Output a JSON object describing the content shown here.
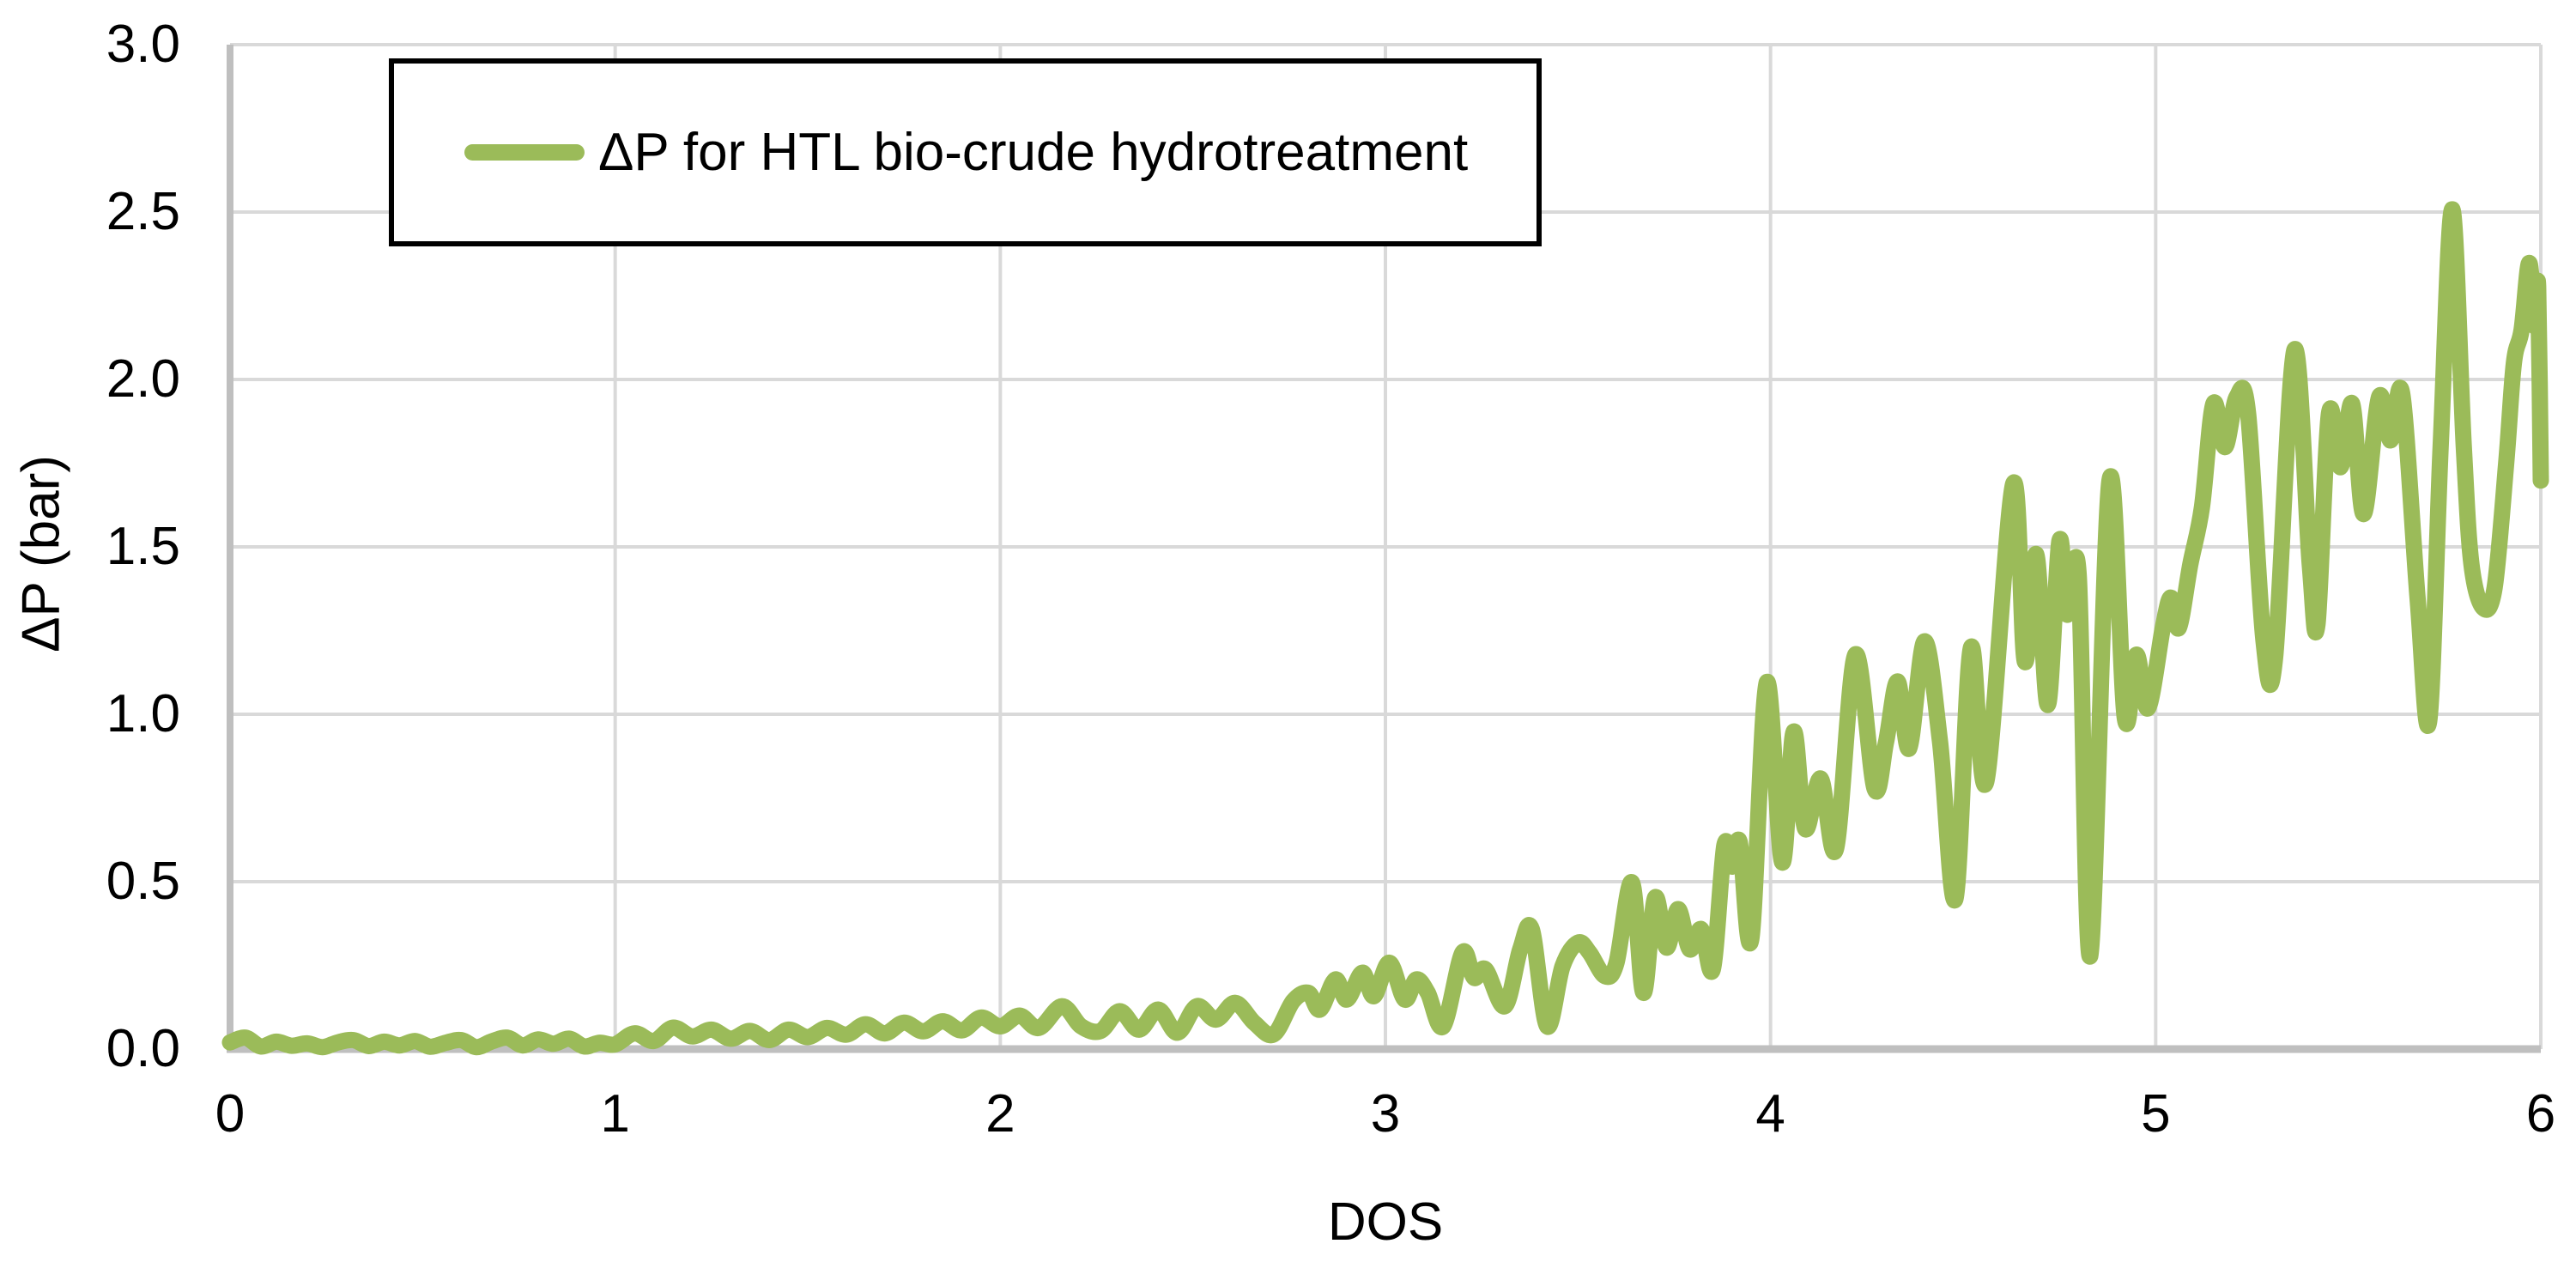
{
  "legend": {
    "label": "ΔP for HTL bio-crude hydrotreatment"
  },
  "chart_data": {
    "type": "line",
    "title": "",
    "xlabel": "DOS",
    "ylabel": "ΔP (bar)",
    "xlim": [
      0,
      6
    ],
    "ylim": [
      0,
      3.0
    ],
    "grid": true,
    "legend_position": "top-left-inside",
    "xticks": [
      {
        "value": 0,
        "label": "0"
      },
      {
        "value": 1,
        "label": "1"
      },
      {
        "value": 2,
        "label": "2"
      },
      {
        "value": 3,
        "label": "3"
      },
      {
        "value": 4,
        "label": "4"
      },
      {
        "value": 5,
        "label": "5"
      },
      {
        "value": 6,
        "label": "6"
      }
    ],
    "yticks": [
      {
        "value": 0.0,
        "label": "0.0"
      },
      {
        "value": 0.5,
        "label": "0.5"
      },
      {
        "value": 1.0,
        "label": "1.0"
      },
      {
        "value": 1.5,
        "label": "1.5"
      },
      {
        "value": 2.0,
        "label": "2.0"
      },
      {
        "value": 2.5,
        "label": "2.5"
      },
      {
        "value": 3.0,
        "label": "3.0"
      }
    ],
    "colors": {
      "line": "#9BBB59",
      "grid": "#D9D9D9",
      "axis": "#BFBFBF",
      "text": "#000000",
      "legend_border": "#000000"
    },
    "series": [
      {
        "name": "ΔP for HTL bio-crude hydrotreatment",
        "color": "#9BBB59",
        "points": [
          [
            0.0,
            0.02
          ],
          [
            0.04,
            0.034
          ],
          [
            0.08,
            0.008
          ],
          [
            0.12,
            0.022
          ],
          [
            0.16,
            0.01
          ],
          [
            0.2,
            0.017
          ],
          [
            0.24,
            0.006
          ],
          [
            0.28,
            0.02
          ],
          [
            0.32,
            0.027
          ],
          [
            0.36,
            0.009
          ],
          [
            0.4,
            0.022
          ],
          [
            0.44,
            0.011
          ],
          [
            0.48,
            0.024
          ],
          [
            0.52,
            0.007
          ],
          [
            0.56,
            0.019
          ],
          [
            0.6,
            0.027
          ],
          [
            0.64,
            0.006
          ],
          [
            0.68,
            0.023
          ],
          [
            0.72,
            0.034
          ],
          [
            0.76,
            0.011
          ],
          [
            0.8,
            0.029
          ],
          [
            0.84,
            0.016
          ],
          [
            0.88,
            0.031
          ],
          [
            0.92,
            0.008
          ],
          [
            0.96,
            0.019
          ],
          [
            1.0,
            0.014
          ],
          [
            1.05,
            0.047
          ],
          [
            1.1,
            0.024
          ],
          [
            1.15,
            0.064
          ],
          [
            1.2,
            0.038
          ],
          [
            1.25,
            0.058
          ],
          [
            1.3,
            0.031
          ],
          [
            1.35,
            0.054
          ],
          [
            1.4,
            0.027
          ],
          [
            1.45,
            0.058
          ],
          [
            1.5,
            0.036
          ],
          [
            1.55,
            0.063
          ],
          [
            1.6,
            0.043
          ],
          [
            1.65,
            0.074
          ],
          [
            1.7,
            0.047
          ],
          [
            1.75,
            0.079
          ],
          [
            1.8,
            0.053
          ],
          [
            1.85,
            0.083
          ],
          [
            1.9,
            0.056
          ],
          [
            1.95,
            0.094
          ],
          [
            2.0,
            0.068
          ],
          [
            2.05,
            0.1
          ],
          [
            2.1,
            0.063
          ],
          [
            2.16,
            0.128
          ],
          [
            2.21,
            0.068
          ],
          [
            2.26,
            0.054
          ],
          [
            2.31,
            0.113
          ],
          [
            2.36,
            0.058
          ],
          [
            2.41,
            0.118
          ],
          [
            2.46,
            0.049
          ],
          [
            2.51,
            0.128
          ],
          [
            2.56,
            0.088
          ],
          [
            2.61,
            0.138
          ],
          [
            2.66,
            0.078
          ],
          [
            2.71,
            0.044
          ],
          [
            2.76,
            0.143
          ],
          [
            2.8,
            0.168
          ],
          [
            2.83,
            0.118
          ],
          [
            2.87,
            0.208
          ],
          [
            2.9,
            0.148
          ],
          [
            2.94,
            0.228
          ],
          [
            2.97,
            0.158
          ],
          [
            3.01,
            0.258
          ],
          [
            3.05,
            0.148
          ],
          [
            3.08,
            0.208
          ],
          [
            3.11,
            0.168
          ],
          [
            3.15,
            0.068
          ],
          [
            3.2,
            0.288
          ],
          [
            3.23,
            0.213
          ],
          [
            3.26,
            0.238
          ],
          [
            3.31,
            0.128
          ],
          [
            3.35,
            0.298
          ],
          [
            3.38,
            0.358
          ],
          [
            3.42,
            0.068
          ],
          [
            3.46,
            0.248
          ],
          [
            3.5,
            0.318
          ],
          [
            3.53,
            0.288
          ],
          [
            3.57,
            0.218
          ],
          [
            3.6,
            0.258
          ],
          [
            3.64,
            0.498
          ],
          [
            3.67,
            0.168
          ],
          [
            3.7,
            0.452
          ],
          [
            3.73,
            0.303
          ],
          [
            3.76,
            0.418
          ],
          [
            3.79,
            0.298
          ],
          [
            3.82,
            0.358
          ],
          [
            3.85,
            0.238
          ],
          [
            3.88,
            0.608
          ],
          [
            3.9,
            0.545
          ],
          [
            3.92,
            0.618
          ],
          [
            3.95,
            0.328
          ],
          [
            3.99,
            1.095
          ],
          [
            4.03,
            0.558
          ],
          [
            4.06,
            0.948
          ],
          [
            4.09,
            0.658
          ],
          [
            4.13,
            0.808
          ],
          [
            4.17,
            0.598
          ],
          [
            4.22,
            1.178
          ],
          [
            4.27,
            0.778
          ],
          [
            4.3,
            0.918
          ],
          [
            4.33,
            1.098
          ],
          [
            4.36,
            0.898
          ],
          [
            4.4,
            1.218
          ],
          [
            4.44,
            0.918
          ],
          [
            4.48,
            0.448
          ],
          [
            4.52,
            1.198
          ],
          [
            4.56,
            0.798
          ],
          [
            4.63,
            1.688
          ],
          [
            4.66,
            1.158
          ],
          [
            4.69,
            1.478
          ],
          [
            4.72,
            1.028
          ],
          [
            4.75,
            1.518
          ],
          [
            4.77,
            1.298
          ],
          [
            4.8,
            1.418
          ],
          [
            4.83,
            0.278
          ],
          [
            4.88,
            1.698
          ],
          [
            4.92,
            0.988
          ],
          [
            4.95,
            1.178
          ],
          [
            4.98,
            1.018
          ],
          [
            5.02,
            1.268
          ],
          [
            5.04,
            1.348
          ],
          [
            5.06,
            1.258
          ],
          [
            5.09,
            1.448
          ],
          [
            5.12,
            1.618
          ],
          [
            5.15,
            1.928
          ],
          [
            5.18,
            1.798
          ],
          [
            5.21,
            1.948
          ],
          [
            5.24,
            1.898
          ],
          [
            5.28,
            1.218
          ],
          [
            5.31,
            1.168
          ],
          [
            5.36,
            2.088
          ],
          [
            5.4,
            1.448
          ],
          [
            5.42,
            1.268
          ],
          [
            5.45,
            1.898
          ],
          [
            5.48,
            1.738
          ],
          [
            5.51,
            1.928
          ],
          [
            5.54,
            1.598
          ],
          [
            5.58,
            1.948
          ],
          [
            5.61,
            1.818
          ],
          [
            5.64,
            1.958
          ],
          [
            5.68,
            1.348
          ],
          [
            5.71,
            0.978
          ],
          [
            5.74,
            1.798
          ],
          [
            5.77,
            2.508
          ],
          [
            5.8,
            1.798
          ],
          [
            5.82,
            1.448
          ],
          [
            5.85,
            1.318
          ],
          [
            5.88,
            1.378
          ],
          [
            5.91,
            1.748
          ],
          [
            5.93,
            2.048
          ],
          [
            5.95,
            2.148
          ],
          [
            5.97,
            2.348
          ],
          [
            5.985,
            2.158
          ],
          [
            5.993,
            2.278
          ],
          [
            6.0,
            1.698
          ]
        ]
      }
    ]
  }
}
